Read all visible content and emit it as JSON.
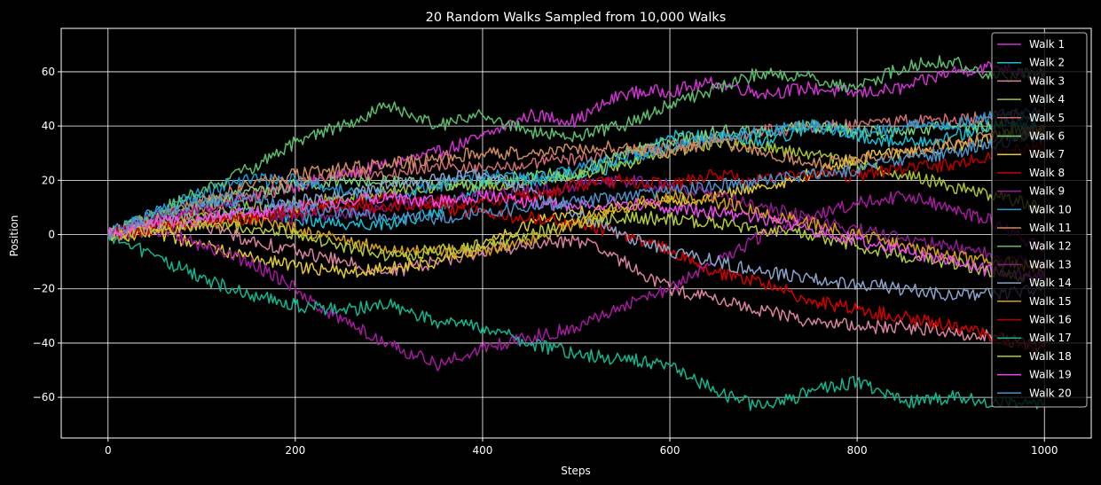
{
  "chart_data": {
    "type": "line",
    "title": "20 Random Walks Sampled from 10,000 Walks",
    "xlabel": "Steps",
    "ylabel": "Position",
    "xlim": [
      -50,
      1050
    ],
    "ylim": [
      -75,
      76
    ],
    "x_ticks": [
      0,
      200,
      400,
      600,
      800,
      1000
    ],
    "y_ticks": [
      -60,
      -40,
      -20,
      0,
      20,
      40,
      60
    ],
    "x_tick_labels": [
      "0",
      "200",
      "400",
      "600",
      "800",
      "1000"
    ],
    "y_tick_labels": [
      "−60",
      "−40",
      "−20",
      "0",
      "20",
      "40",
      "60"
    ],
    "grid": true,
    "legend_position": "top-right",
    "background": "#000000",
    "axes_color": "#ffffff",
    "x_points": [
      0,
      50,
      100,
      150,
      200,
      250,
      300,
      350,
      400,
      450,
      500,
      550,
      600,
      650,
      700,
      750,
      800,
      850,
      900,
      950,
      1000
    ],
    "series": [
      {
        "name": "Walk 1",
        "color": "#cc33cc",
        "values": [
          0,
          4,
          10,
          14,
          18,
          22,
          26,
          30,
          36,
          44,
          42,
          52,
          53,
          56,
          52,
          54,
          52,
          54,
          60,
          62,
          58
        ]
      },
      {
        "name": "Walk 2",
        "color": "#16c1d4",
        "values": [
          0,
          8,
          14,
          10,
          6,
          4,
          4,
          8,
          18,
          20,
          22,
          26,
          36,
          36,
          34,
          40,
          36,
          34,
          36,
          40,
          42
        ]
      },
      {
        "name": "Walk 3",
        "color": "#d9829c",
        "values": [
          0,
          2,
          4,
          -2,
          -6,
          -10,
          -14,
          -10,
          -6,
          -4,
          -2,
          -10,
          -20,
          -24,
          -28,
          -32,
          -34,
          -34,
          -36,
          -38,
          -42
        ]
      },
      {
        "name": "Walk 4",
        "color": "#a7c232",
        "values": [
          0,
          6,
          8,
          10,
          10,
          14,
          16,
          18,
          18,
          20,
          22,
          26,
          30,
          34,
          32,
          30,
          26,
          22,
          18,
          14,
          10
        ]
      },
      {
        "name": "Walk 5",
        "color": "#cf6b72",
        "values": [
          0,
          4,
          10,
          14,
          18,
          22,
          22,
          26,
          24,
          26,
          28,
          30,
          32,
          36,
          38,
          40,
          40,
          42,
          42,
          44,
          45
        ]
      },
      {
        "name": "Walk 6",
        "color": "#73d27a",
        "values": [
          0,
          6,
          10,
          16,
          18,
          20,
          20,
          18,
          20,
          22,
          22,
          30,
          34,
          38,
          38,
          40,
          38,
          38,
          40,
          40,
          38
        ]
      },
      {
        "name": "Walk 7",
        "color": "#e0c930",
        "values": [
          0,
          0,
          -4,
          -8,
          -12,
          -14,
          -12,
          -10,
          -4,
          4,
          8,
          10,
          12,
          14,
          18,
          22,
          28,
          30,
          32,
          36,
          38
        ]
      },
      {
        "name": "Walk 8",
        "color": "#d10000",
        "values": [
          0,
          4,
          6,
          6,
          10,
          12,
          14,
          10,
          8,
          6,
          4,
          0,
          -6,
          -14,
          -18,
          -24,
          -28,
          -30,
          -34,
          -38,
          -42
        ]
      },
      {
        "name": "Walk 9",
        "color": "#a31a9c",
        "values": [
          0,
          2,
          -4,
          -10,
          -20,
          -32,
          -40,
          -48,
          -42,
          -38,
          -34,
          -26,
          -20,
          -10,
          0,
          6,
          12,
          14,
          10,
          4,
          -6
        ]
      },
      {
        "name": "Walk 10",
        "color": "#1c9cd6",
        "values": [
          0,
          8,
          16,
          20,
          20,
          16,
          14,
          18,
          22,
          20,
          24,
          28,
          32,
          36,
          38,
          40,
          38,
          40,
          40,
          44,
          44
        ]
      },
      {
        "name": "Walk 11",
        "color": "#d08a5e",
        "values": [
          0,
          6,
          12,
          18,
          22,
          24,
          26,
          28,
          30,
          30,
          32,
          32,
          30,
          34,
          30,
          26,
          28,
          30,
          34,
          36,
          38
        ]
      },
      {
        "name": "Walk 12",
        "color": "#5bbd6c",
        "values": [
          0,
          8,
          16,
          24,
          34,
          40,
          48,
          40,
          44,
          38,
          36,
          40,
          48,
          54,
          60,
          58,
          54,
          62,
          64,
          58,
          60
        ]
      },
      {
        "name": "Walk 13",
        "color": "#8c1a8c",
        "values": [
          0,
          6,
          10,
          8,
          6,
          8,
          10,
          12,
          14,
          16,
          18,
          20,
          18,
          14,
          10,
          6,
          2,
          -2,
          -4,
          -8,
          -12
        ]
      },
      {
        "name": "Walk 14",
        "color": "#8aa3c9",
        "values": [
          0,
          4,
          6,
          8,
          12,
          14,
          18,
          20,
          22,
          16,
          8,
          0,
          -6,
          -10,
          -14,
          -16,
          -18,
          -20,
          -22,
          -22,
          -20
        ]
      },
      {
        "name": "Walk 15",
        "color": "#d4a017",
        "values": [
          0,
          2,
          4,
          6,
          2,
          -2,
          -6,
          -6,
          -6,
          -2,
          4,
          10,
          14,
          12,
          8,
          4,
          0,
          -4,
          -8,
          -10,
          -12
        ]
      },
      {
        "name": "Walk 16",
        "color": "#b80000",
        "values": [
          0,
          2,
          4,
          6,
          8,
          10,
          10,
          12,
          12,
          14,
          18,
          20,
          18,
          22,
          20,
          22,
          22,
          24,
          26,
          30,
          32
        ]
      },
      {
        "name": "Walk 17",
        "color": "#13b590",
        "values": [
          0,
          -8,
          -16,
          -22,
          -26,
          -28,
          -26,
          -32,
          -34,
          -40,
          -44,
          -46,
          -48,
          -58,
          -64,
          -58,
          -54,
          -62,
          -60,
          -62,
          -62
        ]
      },
      {
        "name": "Walk 18",
        "color": "#b5c93a",
        "values": [
          0,
          2,
          4,
          2,
          0,
          -4,
          -8,
          -6,
          -4,
          0,
          4,
          6,
          6,
          4,
          2,
          0,
          -4,
          -8,
          -10,
          -14,
          -18
        ]
      },
      {
        "name": "Walk 19",
        "color": "#e84de8",
        "values": [
          0,
          4,
          6,
          8,
          10,
          12,
          14,
          12,
          14,
          12,
          10,
          12,
          10,
          8,
          6,
          2,
          -2,
          -6,
          -10,
          -14,
          -16
        ]
      },
      {
        "name": "Walk 20",
        "color": "#4d8fc7",
        "values": [
          0,
          8,
          12,
          14,
          10,
          8,
          6,
          6,
          8,
          10,
          12,
          14,
          16,
          18,
          20,
          22,
          24,
          28,
          30,
          34,
          36
        ]
      }
    ]
  }
}
